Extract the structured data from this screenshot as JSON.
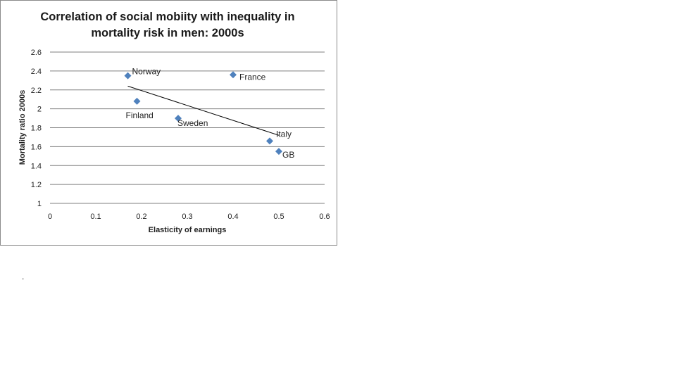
{
  "chart_data": {
    "type": "scatter",
    "title_lines": [
      "Correlation of social mobiity with inequality in",
      "mortality risk in men: 2000s"
    ],
    "xlabel": "Elasticity of earnings",
    "ylabel": "Mortality ratio 2000s",
    "xlim": [
      0,
      0.6
    ],
    "ylim": [
      1,
      2.6
    ],
    "x_ticks": [
      "0",
      "0.1",
      "0.2",
      "0.3",
      "0.4",
      "0.5",
      "0.6"
    ],
    "y_ticks": [
      "1",
      "1.2",
      "1.4",
      "1.6",
      "1.8",
      "2",
      "2.2",
      "2.4",
      "2.6"
    ],
    "grid": "horizontal",
    "marker_color": "#4f81bd",
    "trendline_color": "#000000",
    "points": [
      {
        "label": "Norway",
        "x": 0.17,
        "y": 2.35
      },
      {
        "label": "Finland",
        "x": 0.19,
        "y": 2.08
      },
      {
        "label": "Sweden",
        "x": 0.28,
        "y": 1.9
      },
      {
        "label": "France",
        "x": 0.4,
        "y": 2.36
      },
      {
        "label": "Italy",
        "x": 0.48,
        "y": 1.66
      },
      {
        "label": "GB",
        "x": 0.5,
        "y": 1.55
      }
    ],
    "trendline": {
      "x": [
        0.17,
        0.5
      ],
      "y": [
        2.24,
        1.72
      ]
    }
  },
  "stray_text": "."
}
